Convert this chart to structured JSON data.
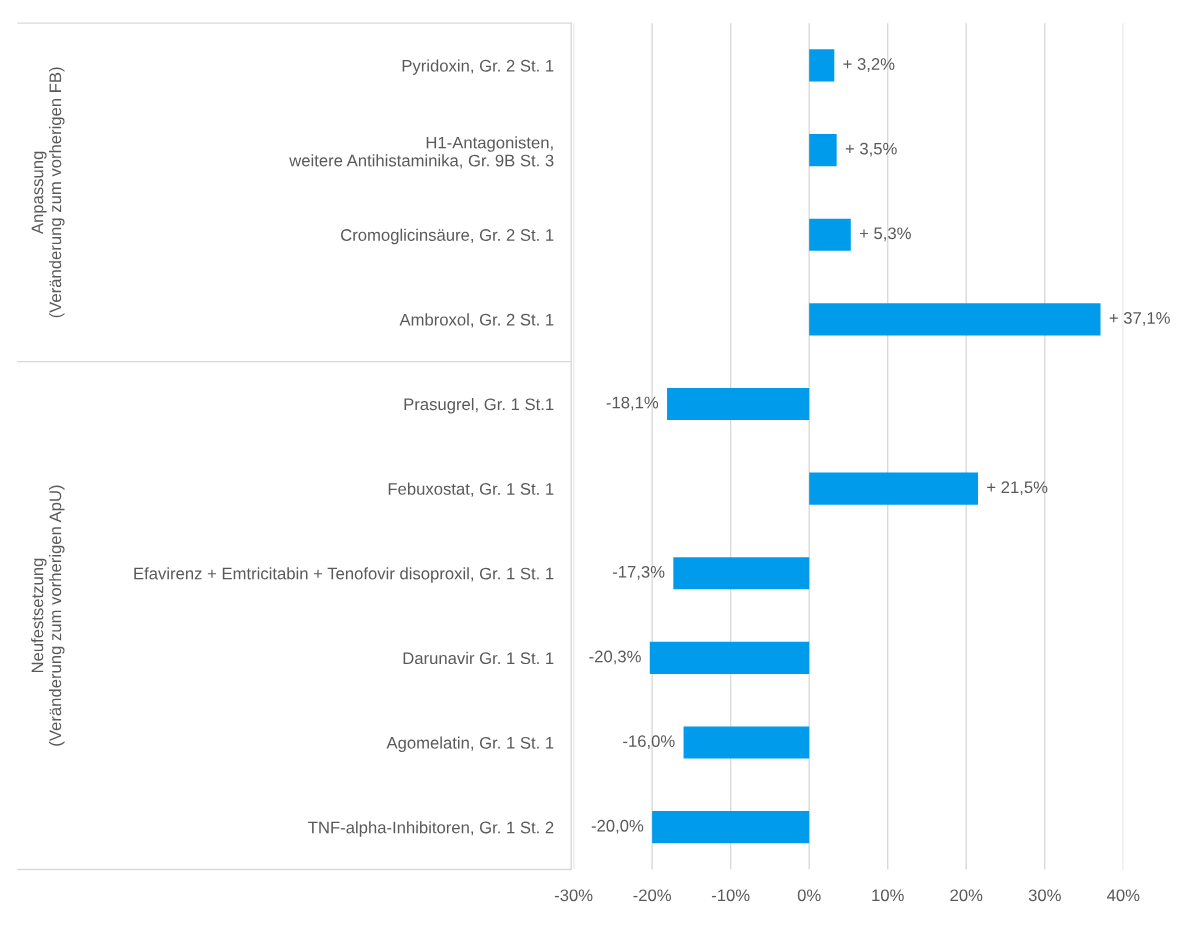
{
  "chart_data": {
    "type": "bar",
    "orientation": "horizontal",
    "categories": [
      "Pyridoxin, Gr. 2 St. 1",
      "H1-Antagonisten,\nweitere Antihistaminika, Gr. 9B St. 3",
      "Cromoglicinsäure, Gr. 2 St. 1",
      "Ambroxol, Gr. 2 St. 1",
      "Prasugrel, Gr. 1 St.1",
      "Febuxostat, Gr. 1 St. 1",
      "Efavirenz + Emtricitabin + Tenofovir disoproxil, Gr. 1 St. 1",
      "Darunavir Gr. 1 St. 1",
      "Agomelatin, Gr. 1 St. 1",
      "TNF-alpha-Inhibitoren, Gr. 1 St. 2"
    ],
    "values": [
      3.2,
      3.5,
      5.3,
      37.1,
      -18.1,
      21.5,
      -17.3,
      -20.3,
      -16.0,
      -20.0
    ],
    "value_labels": [
      "+ 3,2%",
      "+ 3,5%",
      "+ 5,3%",
      "+ 37,1%",
      "-18,1%",
      "+ 21,5%",
      "-17,3%",
      "-20,3%",
      "-16,0%",
      "-20,0%"
    ],
    "color": "#009ceb",
    "xlim": [
      -30,
      40
    ],
    "xticks": [
      {
        "value": -30,
        "label": "-30%"
      },
      {
        "value": -20,
        "label": "-20%"
      },
      {
        "value": -10,
        "label": "-10%"
      },
      {
        "value": 0,
        "label": "0%"
      },
      {
        "value": 10,
        "label": "10%"
      },
      {
        "value": 20,
        "label": "20%"
      },
      {
        "value": 30,
        "label": "30%"
      },
      {
        "value": 40,
        "label": "40%"
      }
    ],
    "grid": "x",
    "annotations": [
      "Anpassung\n(Veränderung zum vorherigen FB)",
      "Neufestsetzung\n(Veränderung zum vorherigen ApU)"
    ]
  }
}
